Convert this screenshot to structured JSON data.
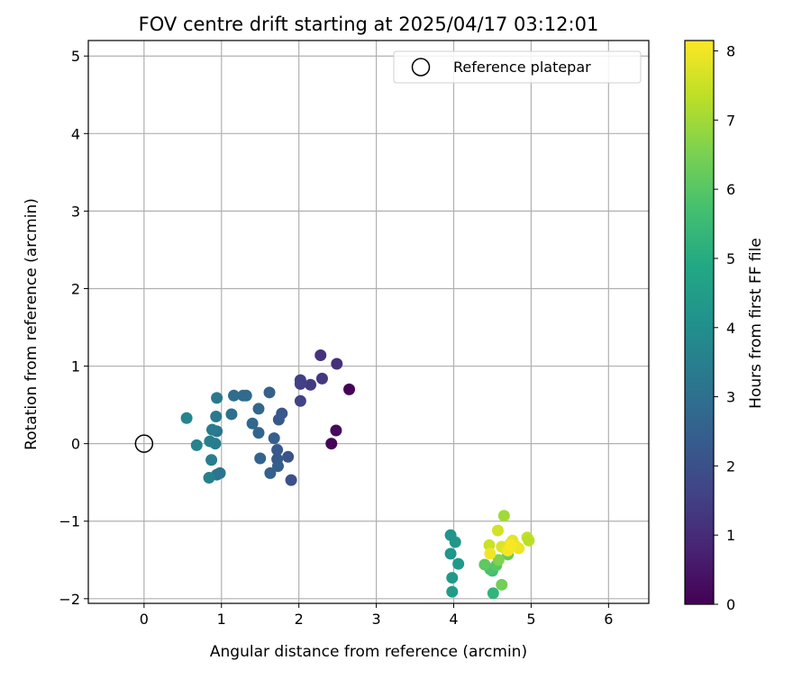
{
  "chart_data": {
    "type": "scatter",
    "title": "FOV centre drift starting at 2025/04/17 03:12:01",
    "xlabel": "Angular distance from reference (arcmin)",
    "ylabel": "Rotation from reference (arcmin)",
    "xlim": [
      -0.72,
      6.52
    ],
    "ylim": [
      -2.06,
      5.2
    ],
    "xticks": [
      "0",
      "1",
      "2",
      "3",
      "4",
      "5",
      "6"
    ],
    "yticks": [
      "−2",
      "−1",
      "0",
      "1",
      "2",
      "3",
      "4",
      "5"
    ],
    "grid": true,
    "legend": {
      "position": "top-right",
      "entries": [
        {
          "label": "Reference platepar",
          "marker": "open-circle"
        }
      ]
    },
    "reference_point": {
      "x": 0,
      "y": 0
    },
    "colorbar": {
      "label": "Hours from first FF file",
      "colormap": "viridis",
      "range": [
        0,
        8.15
      ],
      "ticks": [
        "0",
        "1",
        "2",
        "3",
        "4",
        "5",
        "6",
        "7",
        "8"
      ]
    },
    "points": [
      {
        "x": 2.65,
        "y": 0.7,
        "c": 0.05
      },
      {
        "x": 2.42,
        "y": 0.0,
        "c": 0.1
      },
      {
        "x": 2.48,
        "y": 0.17,
        "c": 0.2
      },
      {
        "x": 2.49,
        "y": 1.03,
        "c": 1.1
      },
      {
        "x": 2.28,
        "y": 1.14,
        "c": 1.2
      },
      {
        "x": 2.3,
        "y": 0.84,
        "c": 1.3
      },
      {
        "x": 2.15,
        "y": 0.76,
        "c": 1.4
      },
      {
        "x": 2.02,
        "y": 0.82,
        "c": 1.5
      },
      {
        "x": 2.02,
        "y": 0.77,
        "c": 1.55
      },
      {
        "x": 2.02,
        "y": 0.55,
        "c": 1.6
      },
      {
        "x": 1.9,
        "y": -0.47,
        "c": 2.0
      },
      {
        "x": 1.86,
        "y": -0.17,
        "c": 2.1
      },
      {
        "x": 1.78,
        "y": 0.39,
        "c": 2.2
      },
      {
        "x": 1.74,
        "y": 0.31,
        "c": 2.3
      },
      {
        "x": 1.72,
        "y": -0.08,
        "c": 2.25
      },
      {
        "x": 1.72,
        "y": -0.2,
        "c": 2.3
      },
      {
        "x": 1.73,
        "y": -0.29,
        "c": 2.4
      },
      {
        "x": 1.68,
        "y": 0.07,
        "c": 2.45
      },
      {
        "x": 1.63,
        "y": -0.38,
        "c": 2.5
      },
      {
        "x": 1.62,
        "y": 0.66,
        "c": 2.55
      },
      {
        "x": 1.5,
        "y": -0.19,
        "c": 2.6
      },
      {
        "x": 1.48,
        "y": 0.14,
        "c": 2.65
      },
      {
        "x": 1.48,
        "y": 0.45,
        "c": 2.7
      },
      {
        "x": 1.4,
        "y": 0.26,
        "c": 2.75
      },
      {
        "x": 1.32,
        "y": 0.62,
        "c": 2.8
      },
      {
        "x": 1.28,
        "y": 0.62,
        "c": 2.85
      },
      {
        "x": 1.16,
        "y": 0.62,
        "c": 2.9
      },
      {
        "x": 1.13,
        "y": 0.38,
        "c": 3.0
      },
      {
        "x": 0.98,
        "y": -0.38,
        "c": 3.1
      },
      {
        "x": 0.94,
        "y": -0.4,
        "c": 3.15
      },
      {
        "x": 0.94,
        "y": 0.16,
        "c": 3.2
      },
      {
        "x": 0.94,
        "y": 0.59,
        "c": 3.25
      },
      {
        "x": 0.93,
        "y": 0.35,
        "c": 3.3
      },
      {
        "x": 0.92,
        "y": 0.0,
        "c": 3.35
      },
      {
        "x": 0.88,
        "y": 0.18,
        "c": 3.4
      },
      {
        "x": 0.87,
        "y": -0.21,
        "c": 3.45
      },
      {
        "x": 0.85,
        "y": 0.03,
        "c": 3.5
      },
      {
        "x": 0.84,
        "y": -0.44,
        "c": 3.55
      },
      {
        "x": 0.68,
        "y": -0.02,
        "c": 3.6
      },
      {
        "x": 0.55,
        "y": 0.33,
        "c": 3.7
      },
      {
        "x": 4.06,
        "y": -1.55,
        "c": 4.4
      },
      {
        "x": 4.02,
        "y": -1.27,
        "c": 4.3
      },
      {
        "x": 3.96,
        "y": -1.18,
        "c": 4.2
      },
      {
        "x": 3.96,
        "y": -1.42,
        "c": 4.25
      },
      {
        "x": 3.98,
        "y": -1.73,
        "c": 4.35
      },
      {
        "x": 3.98,
        "y": -1.91,
        "c": 4.45
      },
      {
        "x": 4.51,
        "y": -1.93,
        "c": 5.3
      },
      {
        "x": 4.5,
        "y": -1.64,
        "c": 5.6
      },
      {
        "x": 4.47,
        "y": -1.62,
        "c": 5.8
      },
      {
        "x": 4.55,
        "y": -1.57,
        "c": 6.0
      },
      {
        "x": 4.4,
        "y": -1.56,
        "c": 6.1
      },
      {
        "x": 4.62,
        "y": -1.82,
        "c": 6.4
      },
      {
        "x": 4.7,
        "y": -1.43,
        "c": 6.2
      },
      {
        "x": 4.58,
        "y": -1.5,
        "c": 6.6
      },
      {
        "x": 4.65,
        "y": -0.93,
        "c": 7.0
      },
      {
        "x": 4.57,
        "y": -1.12,
        "c": 7.6
      },
      {
        "x": 4.46,
        "y": -1.31,
        "c": 7.5
      },
      {
        "x": 4.62,
        "y": -1.33,
        "c": 7.7
      },
      {
        "x": 4.66,
        "y": -1.35,
        "c": 7.75
      },
      {
        "x": 4.73,
        "y": -1.29,
        "c": 7.8
      },
      {
        "x": 4.76,
        "y": -1.25,
        "c": 7.85
      },
      {
        "x": 4.8,
        "y": -1.32,
        "c": 7.9
      },
      {
        "x": 4.84,
        "y": -1.35,
        "c": 7.95
      },
      {
        "x": 4.47,
        "y": -1.42,
        "c": 8.0
      },
      {
        "x": 4.7,
        "y": -1.38,
        "c": 8.05
      },
      {
        "x": 4.74,
        "y": -1.31,
        "c": 8.1
      },
      {
        "x": 4.95,
        "y": -1.21,
        "c": 7.4
      },
      {
        "x": 4.97,
        "y": -1.25,
        "c": 7.3
      }
    ]
  }
}
